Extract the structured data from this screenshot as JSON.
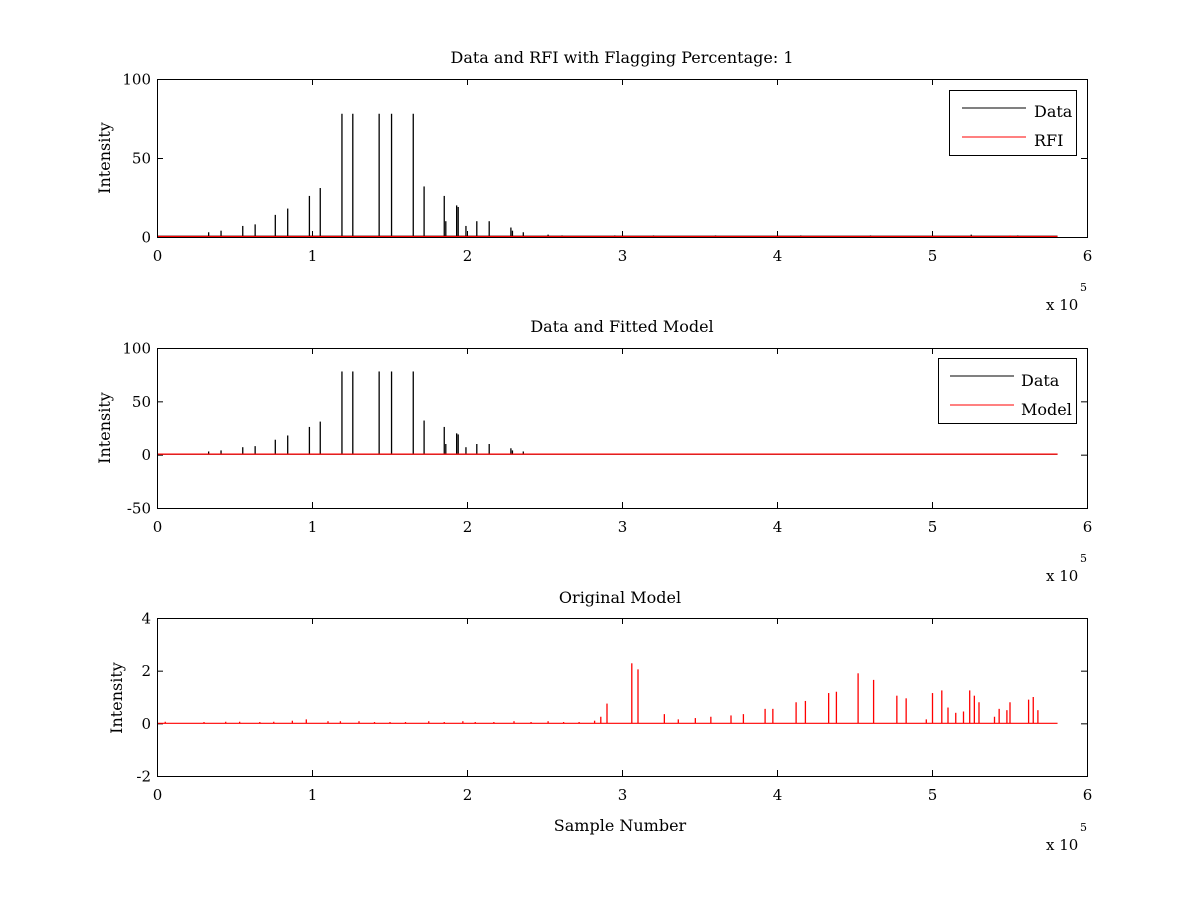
{
  "chart_data": [
    {
      "type": "line",
      "title": "Data and RFI with Flagging Percentage: 1",
      "xlabel": "",
      "ylabel": "Intensity",
      "xlim": [
        0,
        6
      ],
      "ylim": [
        0,
        100
      ],
      "x_multiplier": "x 10",
      "x_multiplier_exp": "5",
      "xticks": [
        "0",
        "1",
        "2",
        "3",
        "4",
        "5",
        "6"
      ],
      "yticks": [
        "0",
        "50",
        "100"
      ],
      "grid": false,
      "legend": "top-right",
      "series": [
        {
          "name": "Data",
          "color": "#000000",
          "baseline": 0.5,
          "peaks": [
            [
              0.33,
              3
            ],
            [
              0.41,
              4
            ],
            [
              0.55,
              7
            ],
            [
              0.63,
              8
            ],
            [
              0.76,
              14
            ],
            [
              0.84,
              18
            ],
            [
              0.98,
              26
            ],
            [
              1.05,
              31
            ],
            [
              1.19,
              78
            ],
            [
              1.26,
              78
            ],
            [
              1.43,
              78
            ],
            [
              1.51,
              78
            ],
            [
              1.65,
              78
            ],
            [
              1.72,
              32
            ],
            [
              1.85,
              26
            ],
            [
              1.86,
              10
            ],
            [
              1.93,
              20
            ],
            [
              1.94,
              19
            ],
            [
              1.99,
              7
            ],
            [
              2.06,
              10
            ],
            [
              2.14,
              10
            ],
            [
              2.28,
              6
            ],
            [
              2.29,
              4
            ],
            [
              2.36,
              3
            ],
            [
              2.52,
              1.5
            ],
            [
              2.61,
              1
            ],
            [
              2.95,
              1
            ],
            [
              3.2,
              1
            ],
            [
              3.6,
              1
            ],
            [
              4.15,
              1
            ],
            [
              4.6,
              1
            ],
            [
              5.25,
              1.5
            ],
            [
              5.55,
              1
            ]
          ]
        },
        {
          "name": "RFI",
          "color": "#ff0000",
          "baseline": 0.3,
          "peaks": [
            [
              5.5,
              1
            ]
          ]
        }
      ]
    },
    {
      "type": "line",
      "title": "Data and Fitted Model",
      "xlabel": "",
      "ylabel": "Intensity",
      "xlim": [
        0,
        6
      ],
      "ylim": [
        -50,
        100
      ],
      "x_multiplier": "x 10",
      "x_multiplier_exp": "5",
      "xticks": [
        "0",
        "1",
        "2",
        "3",
        "4",
        "5",
        "6"
      ],
      "yticks": [
        "-50",
        "0",
        "50",
        "100"
      ],
      "grid": false,
      "legend": "top-right",
      "series": [
        {
          "name": "Data",
          "color": "#000000",
          "baseline": 0.5,
          "peaks": [
            [
              0.33,
              3
            ],
            [
              0.41,
              4
            ],
            [
              0.55,
              7
            ],
            [
              0.63,
              8
            ],
            [
              0.76,
              14
            ],
            [
              0.84,
              18
            ],
            [
              0.98,
              26
            ],
            [
              1.05,
              31
            ],
            [
              1.19,
              78
            ],
            [
              1.26,
              78
            ],
            [
              1.43,
              78
            ],
            [
              1.51,
              78
            ],
            [
              1.65,
              78
            ],
            [
              1.72,
              32
            ],
            [
              1.85,
              26
            ],
            [
              1.86,
              10
            ],
            [
              1.93,
              20
            ],
            [
              1.94,
              19
            ],
            [
              1.99,
              7
            ],
            [
              2.06,
              10
            ],
            [
              2.14,
              10
            ],
            [
              2.28,
              6
            ],
            [
              2.29,
              4
            ],
            [
              2.36,
              3
            ]
          ]
        },
        {
          "name": "Model",
          "color": "#ff0000",
          "baseline": 0.5,
          "peaks": []
        }
      ]
    },
    {
      "type": "line",
      "title": "Original Model",
      "xlabel": "Sample Number",
      "ylabel": "Intensity",
      "xlim": [
        0,
        6
      ],
      "ylim": [
        -2,
        4
      ],
      "x_multiplier": "x 10",
      "x_multiplier_exp": "5",
      "xticks": [
        "0",
        "1",
        "2",
        "3",
        "4",
        "5",
        "6"
      ],
      "yticks": [
        "-2",
        "0",
        "2",
        "4"
      ],
      "grid": false,
      "legend": "none",
      "series": [
        {
          "color": "#ff0000",
          "baseline": 0,
          "peaks": [
            [
              0.05,
              0.06
            ],
            [
              0.3,
              0.05
            ],
            [
              0.44,
              0.06
            ],
            [
              0.53,
              0.06
            ],
            [
              0.66,
              0.05
            ],
            [
              0.75,
              0.06
            ],
            [
              0.87,
              0.1
            ],
            [
              0.96,
              0.15
            ],
            [
              1.1,
              0.08
            ],
            [
              1.18,
              0.08
            ],
            [
              1.3,
              0.08
            ],
            [
              1.4,
              0.05
            ],
            [
              1.5,
              0.05
            ],
            [
              1.6,
              0.05
            ],
            [
              1.75,
              0.08
            ],
            [
              1.85,
              0.05
            ],
            [
              1.97,
              0.08
            ],
            [
              2.05,
              0.05
            ],
            [
              2.17,
              0.05
            ],
            [
              2.3,
              0.08
            ],
            [
              2.41,
              0.05
            ],
            [
              2.52,
              0.08
            ],
            [
              2.62,
              0.05
            ],
            [
              2.72,
              0.05
            ],
            [
              2.82,
              0.1
            ],
            [
              2.86,
              0.25
            ],
            [
              2.9,
              0.75
            ],
            [
              3.06,
              2.28
            ],
            [
              3.1,
              2.05
            ],
            [
              3.27,
              0.35
            ],
            [
              3.36,
              0.15
            ],
            [
              3.47,
              0.2
            ],
            [
              3.57,
              0.25
            ],
            [
              3.7,
              0.3
            ],
            [
              3.78,
              0.35
            ],
            [
              3.92,
              0.55
            ],
            [
              3.97,
              0.55
            ],
            [
              4.12,
              0.8
            ],
            [
              4.18,
              0.85
            ],
            [
              4.33,
              1.15
            ],
            [
              4.38,
              1.2
            ],
            [
              4.52,
              1.9
            ],
            [
              4.62,
              1.65
            ],
            [
              4.77,
              1.05
            ],
            [
              4.83,
              0.95
            ],
            [
              4.96,
              0.15
            ],
            [
              5.0,
              1.15
            ],
            [
              5.06,
              1.25
            ],
            [
              5.1,
              0.6
            ],
            [
              5.15,
              0.4
            ],
            [
              5.2,
              0.45
            ],
            [
              5.24,
              1.25
            ],
            [
              5.27,
              1.05
            ],
            [
              5.3,
              0.8
            ],
            [
              5.4,
              0.25
            ],
            [
              5.43,
              0.55
            ],
            [
              5.48,
              0.5
            ],
            [
              5.5,
              0.8
            ],
            [
              5.62,
              0.9
            ],
            [
              5.65,
              1.0
            ],
            [
              5.68,
              0.5
            ]
          ]
        }
      ]
    }
  ]
}
